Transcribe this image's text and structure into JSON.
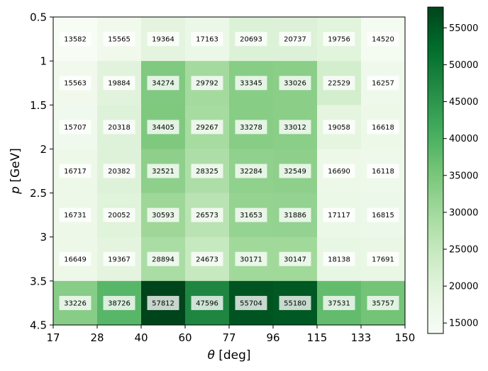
{
  "chart_data": {
    "type": "heatmap",
    "title": "",
    "xlabel": {
      "symbol": "θ",
      "unit": " [deg]"
    },
    "ylabel": {
      "symbol": "p",
      "unit": " [GeV]"
    },
    "x_edges": [
      "17",
      "28",
      "40",
      "60",
      "77",
      "96",
      "115",
      "133",
      "150"
    ],
    "y_edges": [
      "0.5",
      "1",
      "1.5",
      "2",
      "2.5",
      "3",
      "3.5",
      "4.5"
    ],
    "values": [
      [
        13582,
        15565,
        19364,
        17163,
        20693,
        20737,
        19756,
        14520
      ],
      [
        15563,
        19884,
        34274,
        29792,
        33345,
        33026,
        22529,
        16257
      ],
      [
        15707,
        20318,
        34405,
        29267,
        33278,
        33012,
        19058,
        16618
      ],
      [
        16717,
        20382,
        32521,
        28325,
        32284,
        32549,
        16690,
        16118
      ],
      [
        16731,
        20052,
        30593,
        26573,
        31653,
        31886,
        17117,
        16815
      ],
      [
        16649,
        19367,
        28894,
        24673,
        30171,
        30147,
        18138,
        17691
      ],
      [
        33226,
        38726,
        57812,
        47596,
        55704,
        55180,
        37531,
        35757
      ]
    ],
    "colorbar": {
      "colormap": "Greens",
      "min": 13582,
      "max": 57812,
      "ticks": [
        "15000",
        "20000",
        "25000",
        "30000",
        "35000",
        "40000",
        "45000",
        "50000",
        "55000"
      ]
    }
  }
}
